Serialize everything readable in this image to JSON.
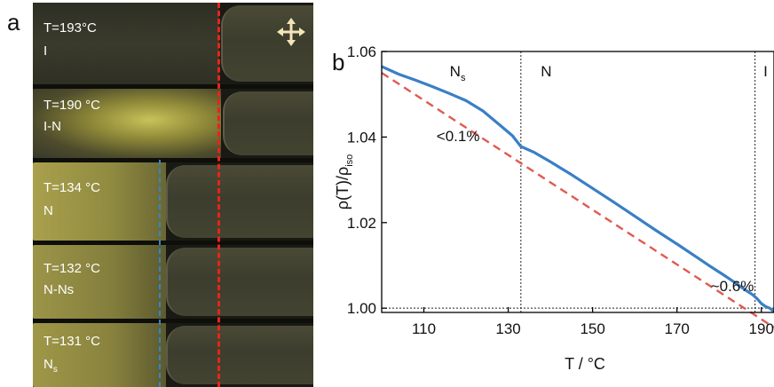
{
  "panel_a": {
    "letter": "a",
    "strips": [
      {
        "temp": "T=193°C",
        "phase": "I"
      },
      {
        "temp": "T=190 °C",
        "phase": "I-N"
      },
      {
        "temp": "T=134 °C",
        "phase": "N"
      },
      {
        "temp": "T=132 °C",
        "phase": "N-Ns"
      },
      {
        "temp": "T=131 °C",
        "phase": "N",
        "phase_sub": "s"
      }
    ],
    "crossed_polarizer_icon": "crossed-arrows-icon",
    "colors": {
      "red_line": "#e8241c",
      "blue_line": "#2f86c8",
      "texture": "#a8a04c",
      "cap": "#3f402f"
    }
  },
  "chart_data": {
    "panel_letter": "b",
    "type": "line",
    "xlabel": "T / °C",
    "ylabel_main": "ρ(T)/ρ",
    "ylabel_sub": "iso",
    "xlim": [
      100,
      193
    ],
    "ylim": [
      0.999,
      1.06
    ],
    "xticks": [
      110,
      130,
      150,
      170,
      190
    ],
    "yticks": [
      1.0,
      1.02,
      1.04,
      1.06
    ],
    "ytick_labels": [
      "1.00",
      "1.02",
      "1.04",
      "1.06"
    ],
    "phase_boundaries": [
      133,
      188.5
    ],
    "phase_labels": [
      {
        "text": "N",
        "sub": "s",
        "x": 118
      },
      {
        "text": "N",
        "sub": "",
        "x": 139
      },
      {
        "text": "I",
        "sub": "",
        "x": 191
      }
    ],
    "hline_y": 1.0,
    "annotations": [
      {
        "text": "<0.1%",
        "x": 113,
        "y": 1.039
      },
      {
        "text": "~0.6%",
        "x": 178,
        "y": 1.004
      }
    ],
    "series": [
      {
        "color": "#3a7fc6",
        "style": "solid",
        "x": [
          100,
          104,
          108,
          112,
          116,
          120,
          124,
          128,
          131,
          133,
          136,
          140,
          145,
          150,
          155,
          160,
          165,
          170,
          175,
          178,
          181,
          184,
          186,
          188,
          189,
          190,
          191,
          192,
          193
        ],
        "y": [
          1.0565,
          1.0547,
          1.0533,
          1.0518,
          1.0502,
          1.0485,
          1.0461,
          1.0428,
          1.0403,
          1.0378,
          1.0365,
          1.0342,
          1.0312,
          1.028,
          1.0248,
          1.0215,
          1.0182,
          1.015,
          1.0117,
          1.0097,
          1.0078,
          1.0058,
          1.0044,
          1.0031,
          1.0022,
          1.0011,
          1.0004,
          1.0,
          0.9992
        ]
      },
      {
        "color": "#e05a52",
        "style": "dashed",
        "x": [
          100,
          193
        ],
        "y": [
          1.055,
          0.9955
        ]
      }
    ]
  }
}
